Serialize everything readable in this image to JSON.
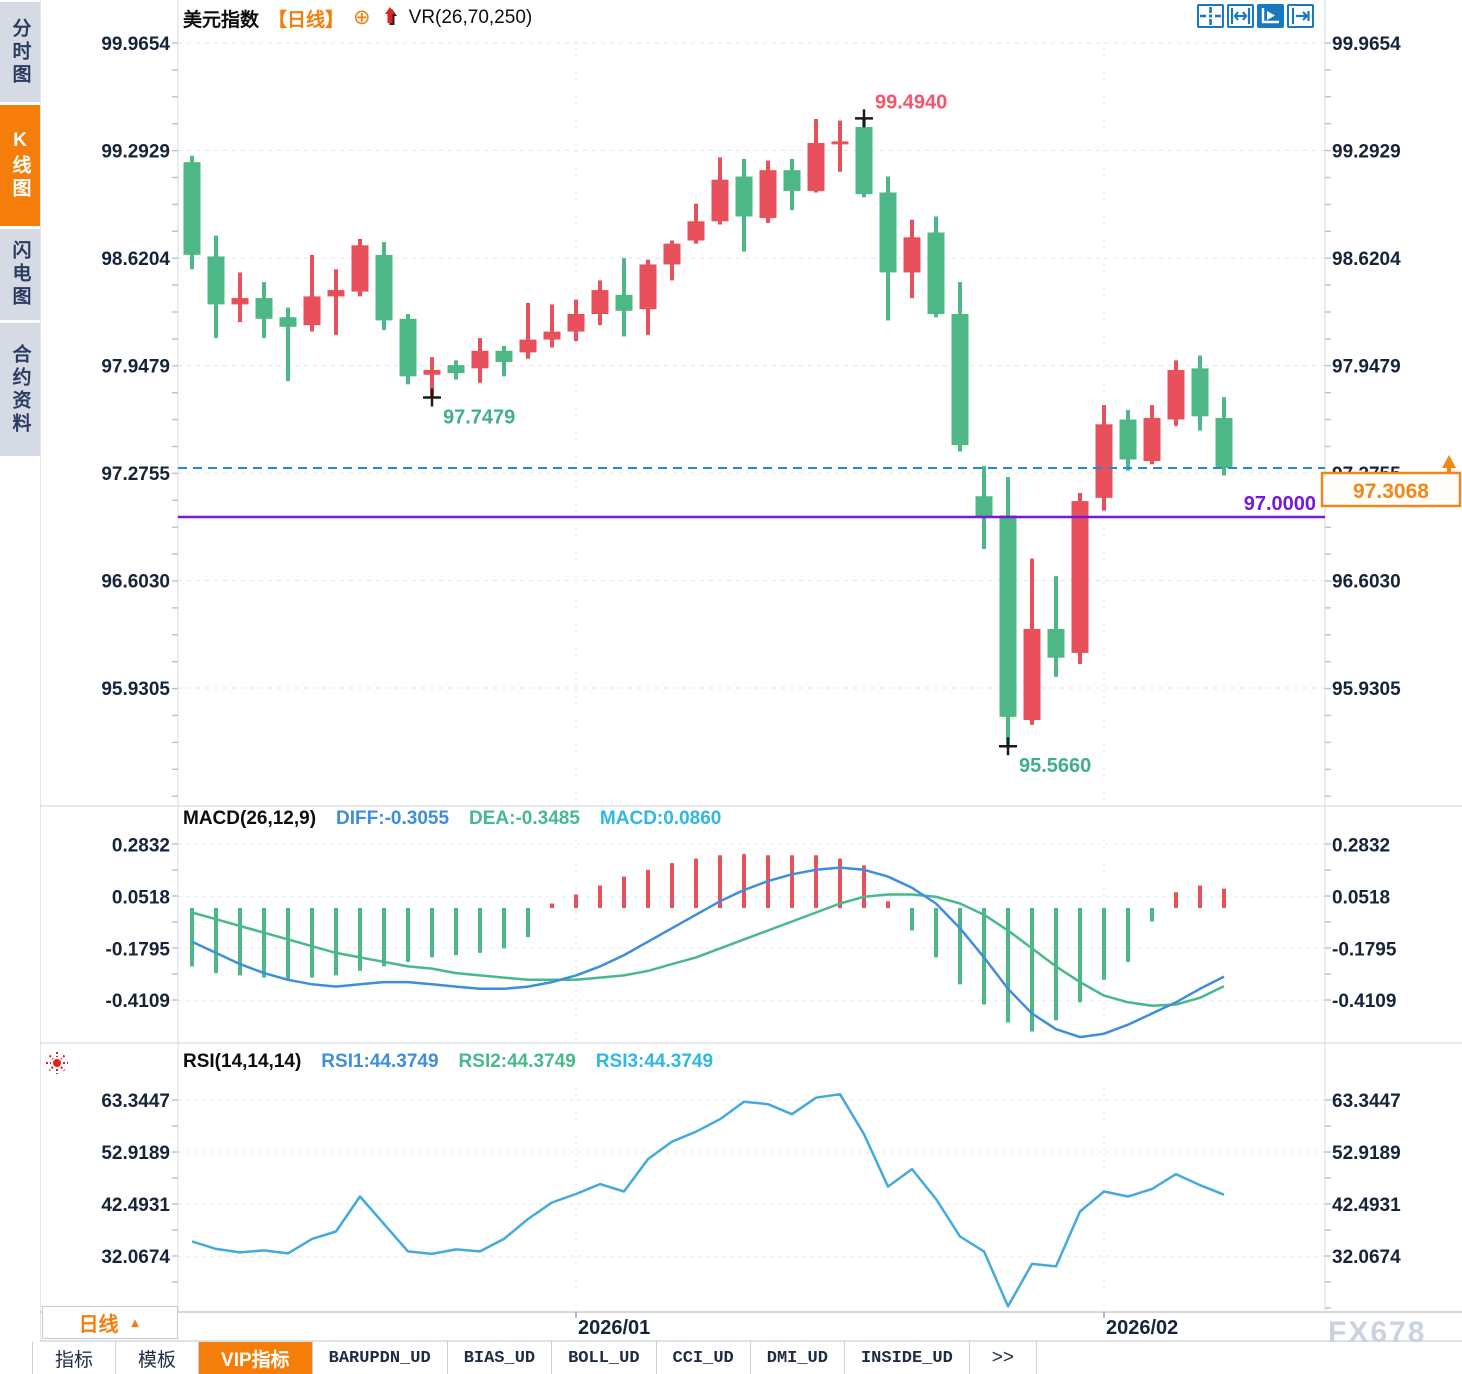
{
  "app": {
    "watermark": "FX678"
  },
  "sidebar": {
    "items": [
      {
        "label": "分时图",
        "active": false
      },
      {
        "label": "K线图",
        "active": true
      },
      {
        "label": "闪电图",
        "active": false
      },
      {
        "label": "合约资料",
        "active": false
      }
    ]
  },
  "header": {
    "symbol": "美元指数",
    "period_tag": "【日线】",
    "add_glyph": "⊕",
    "indicator_label": "VR(26,70,250)"
  },
  "toolbar": {
    "buttons": [
      {
        "icon": "crosshair-icon",
        "active": false
      },
      {
        "icon": "fit-width-icon",
        "active": false
      },
      {
        "icon": "auto-scale-icon",
        "active": true
      },
      {
        "icon": "pan-right-icon",
        "active": false
      }
    ]
  },
  "macd_header": {
    "name": "MACD(26,12,9)",
    "diff": "DIFF:-0.3055",
    "dea": "DEA:-0.3485",
    "macd": "MACD:0.0860"
  },
  "rsi_header": {
    "name": "RSI(14,14,14)",
    "rsi1": "RSI1:44.3749",
    "rsi2": "RSI2:44.3749",
    "rsi3": "RSI3:44.3749"
  },
  "footer": {
    "period": "日线",
    "period_arrow": "▲",
    "tabs": [
      {
        "label": "指标",
        "active": false,
        "mono": false
      },
      {
        "label": "模板",
        "active": false,
        "mono": false
      },
      {
        "label": "VIP指标",
        "active": true,
        "mono": false
      },
      {
        "label": "BARUPDN_UD",
        "active": false,
        "mono": true
      },
      {
        "label": "BIAS_UD",
        "active": false,
        "mono": true
      },
      {
        "label": "BOLL_UD",
        "active": false,
        "mono": true
      },
      {
        "label": "CCI_UD",
        "active": false,
        "mono": true
      },
      {
        "label": "DMI_UD",
        "active": false,
        "mono": true
      },
      {
        "label": "INSIDE_UD",
        "active": false,
        "mono": true
      },
      {
        "label": ">>",
        "active": false,
        "mono": false
      }
    ]
  },
  "colors": {
    "candle_up": "#e8515c",
    "candle_down": "#4db885",
    "macd_diff": "#3e8ede",
    "macd_dea": "#47b98c",
    "macd_value": "#2eb8e6",
    "rsi_line": "#45a9de",
    "accent": "#f57d0a",
    "purple_line": "#7719d8",
    "dashed_line": "#1e88e5",
    "ann_red": "#f4556a",
    "ann_green": "#3fae89",
    "axis_text": "#16243a",
    "badge": "#f28718",
    "grid": "#e3e6ec",
    "tick": "#b9c2cf"
  },
  "chart_data": [
    {
      "type": "candlestick",
      "title": "美元指数 日线",
      "y_ticks": [
        "99.9654",
        "99.2929",
        "98.6204",
        "97.9479",
        "97.2755",
        "96.6030",
        "95.9305"
      ],
      "x_ticks": [
        {
          "label": "2026/01",
          "candle_index": 16
        },
        {
          "label": "2026/02",
          "candle_index": 38
        }
      ],
      "candles": [
        [
          99.22,
          99.26,
          98.55,
          98.64
        ],
        [
          98.63,
          98.76,
          98.12,
          98.33
        ],
        [
          98.33,
          98.53,
          98.22,
          98.37
        ],
        [
          98.37,
          98.47,
          98.12,
          98.24
        ],
        [
          98.25,
          98.31,
          97.85,
          98.19
        ],
        [
          98.2,
          98.64,
          98.16,
          98.38
        ],
        [
          98.38,
          98.55,
          98.14,
          98.42
        ],
        [
          98.41,
          98.74,
          98.38,
          98.7
        ],
        [
          98.64,
          98.72,
          98.17,
          98.23
        ],
        [
          98.24,
          98.27,
          97.83,
          97.88
        ],
        [
          97.89,
          98.0,
          97.7479,
          97.92
        ],
        [
          97.95,
          97.98,
          97.86,
          97.9
        ],
        [
          97.93,
          98.12,
          97.84,
          98.04
        ],
        [
          98.04,
          98.07,
          97.88,
          97.97
        ],
        [
          98.03,
          98.34,
          97.99,
          98.11
        ],
        [
          98.11,
          98.33,
          98.06,
          98.16
        ],
        [
          98.16,
          98.36,
          98.1,
          98.27
        ],
        [
          98.27,
          98.48,
          98.2,
          98.42
        ],
        [
          98.39,
          98.62,
          98.13,
          98.29
        ],
        [
          98.3,
          98.61,
          98.14,
          98.58
        ],
        [
          98.58,
          98.73,
          98.48,
          98.71
        ],
        [
          98.73,
          98.96,
          98.71,
          98.85
        ],
        [
          98.85,
          99.25,
          98.83,
          99.11
        ],
        [
          99.13,
          99.24,
          98.66,
          98.88
        ],
        [
          98.87,
          99.23,
          98.84,
          99.17
        ],
        [
          99.17,
          99.24,
          98.92,
          99.04
        ],
        [
          99.04,
          99.49,
          99.03,
          99.34
        ],
        [
          99.34,
          99.48,
          99.16,
          99.35
        ],
        [
          99.44,
          99.494,
          99.0,
          99.02
        ],
        [
          99.03,
          99.13,
          98.23,
          98.53
        ],
        [
          98.53,
          98.86,
          98.37,
          98.75
        ],
        [
          98.78,
          98.88,
          98.25,
          98.27
        ],
        [
          98.27,
          98.47,
          97.41,
          97.45
        ],
        [
          97.13,
          97.32,
          96.8,
          97.0
        ],
        [
          97.01,
          97.25,
          95.57,
          95.75
        ],
        [
          95.73,
          96.74,
          95.7,
          96.3
        ],
        [
          96.3,
          96.63,
          96.0,
          96.12
        ],
        [
          96.15,
          97.15,
          96.08,
          97.1
        ],
        [
          97.12,
          97.7,
          97.04,
          97.58
        ],
        [
          97.61,
          97.67,
          97.29,
          97.36
        ],
        [
          97.35,
          97.7,
          97.33,
          97.62
        ],
        [
          97.61,
          97.98,
          97.57,
          97.92
        ],
        [
          97.93,
          98.01,
          97.54,
          97.63
        ],
        [
          97.62,
          97.75,
          97.26,
          97.3068
        ]
      ],
      "annotations": [
        {
          "text": "99.4940",
          "price": 99.494,
          "candle_index": 28,
          "placement": "above",
          "color": "red"
        },
        {
          "text": "97.7479",
          "price": 97.7479,
          "candle_index": 10,
          "placement": "below",
          "color": "green"
        },
        {
          "text": "95.5660",
          "price": 95.566,
          "candle_index": 34,
          "placement": "below",
          "color": "green"
        }
      ],
      "hlines": [
        {
          "value": 97.3068,
          "style": "dashed",
          "color": "blue",
          "label": ""
        },
        {
          "value": 97.0,
          "style": "solid",
          "color": "purple",
          "label": "97.0000"
        }
      ],
      "last_price": {
        "value": "97.3068",
        "direction": "up"
      }
    },
    {
      "type": "bar",
      "title": "MACD(26,12,9)",
      "values": {
        "DIFF": -0.3055,
        "DEA": -0.3485,
        "MACD": 0.086
      },
      "y_ticks": [
        "0.2832",
        "0.0518",
        "-0.1795",
        "-0.4109"
      ],
      "histogram": [
        -0.26,
        -0.29,
        -0.3,
        -0.31,
        -0.32,
        -0.31,
        -0.3,
        -0.28,
        -0.26,
        -0.24,
        -0.22,
        -0.21,
        -0.2,
        -0.18,
        -0.13,
        0.02,
        0.06,
        0.1,
        0.14,
        0.17,
        0.2,
        0.22,
        0.235,
        0.24,
        0.235,
        0.235,
        0.235,
        0.22,
        0.19,
        0.03,
        -0.1,
        -0.22,
        -0.34,
        -0.43,
        -0.51,
        -0.55,
        -0.5,
        -0.42,
        -0.32,
        -0.24,
        -0.06,
        0.07,
        0.1,
        0.086
      ],
      "diff_line": [
        -0.15,
        -0.2,
        -0.25,
        -0.29,
        -0.32,
        -0.34,
        -0.35,
        -0.34,
        -0.33,
        -0.33,
        -0.34,
        -0.35,
        -0.36,
        -0.36,
        -0.35,
        -0.33,
        -0.3,
        -0.26,
        -0.21,
        -0.15,
        -0.09,
        -0.03,
        0.03,
        0.08,
        0.12,
        0.15,
        0.17,
        0.18,
        0.17,
        0.14,
        0.09,
        0.02,
        -0.09,
        -0.22,
        -0.36,
        -0.47,
        -0.54,
        -0.575,
        -0.56,
        -0.52,
        -0.47,
        -0.42,
        -0.36,
        -0.3055
      ],
      "dea_line": [
        -0.02,
        -0.05,
        -0.08,
        -0.11,
        -0.14,
        -0.17,
        -0.2,
        -0.22,
        -0.24,
        -0.26,
        -0.27,
        -0.29,
        -0.3,
        -0.31,
        -0.32,
        -0.32,
        -0.32,
        -0.31,
        -0.3,
        -0.28,
        -0.25,
        -0.22,
        -0.18,
        -0.14,
        -0.1,
        -0.06,
        -0.02,
        0.02,
        0.05,
        0.06,
        0.06,
        0.05,
        0.02,
        -0.03,
        -0.1,
        -0.18,
        -0.26,
        -0.33,
        -0.39,
        -0.42,
        -0.435,
        -0.43,
        -0.4,
        -0.3485
      ]
    },
    {
      "type": "line",
      "title": "RSI(14,14,14)",
      "y_ticks": [
        "63.3447",
        "52.9189",
        "42.4931",
        "32.0674"
      ],
      "values": [
        35.0,
        33.5,
        32.8,
        33.2,
        32.6,
        35.5,
        37.0,
        44.0,
        38.5,
        33.0,
        32.5,
        33.4,
        33.0,
        35.5,
        39.5,
        42.8,
        44.5,
        46.5,
        45.0,
        51.5,
        55.0,
        57.0,
        59.5,
        63.0,
        62.5,
        60.5,
        63.8,
        64.5,
        56.5,
        46.0,
        49.5,
        43.5,
        36.0,
        33.0,
        22.0,
        30.5,
        30.0,
        41.0,
        45.0,
        44.0,
        45.5,
        48.5,
        46.3,
        44.3749
      ]
    }
  ]
}
